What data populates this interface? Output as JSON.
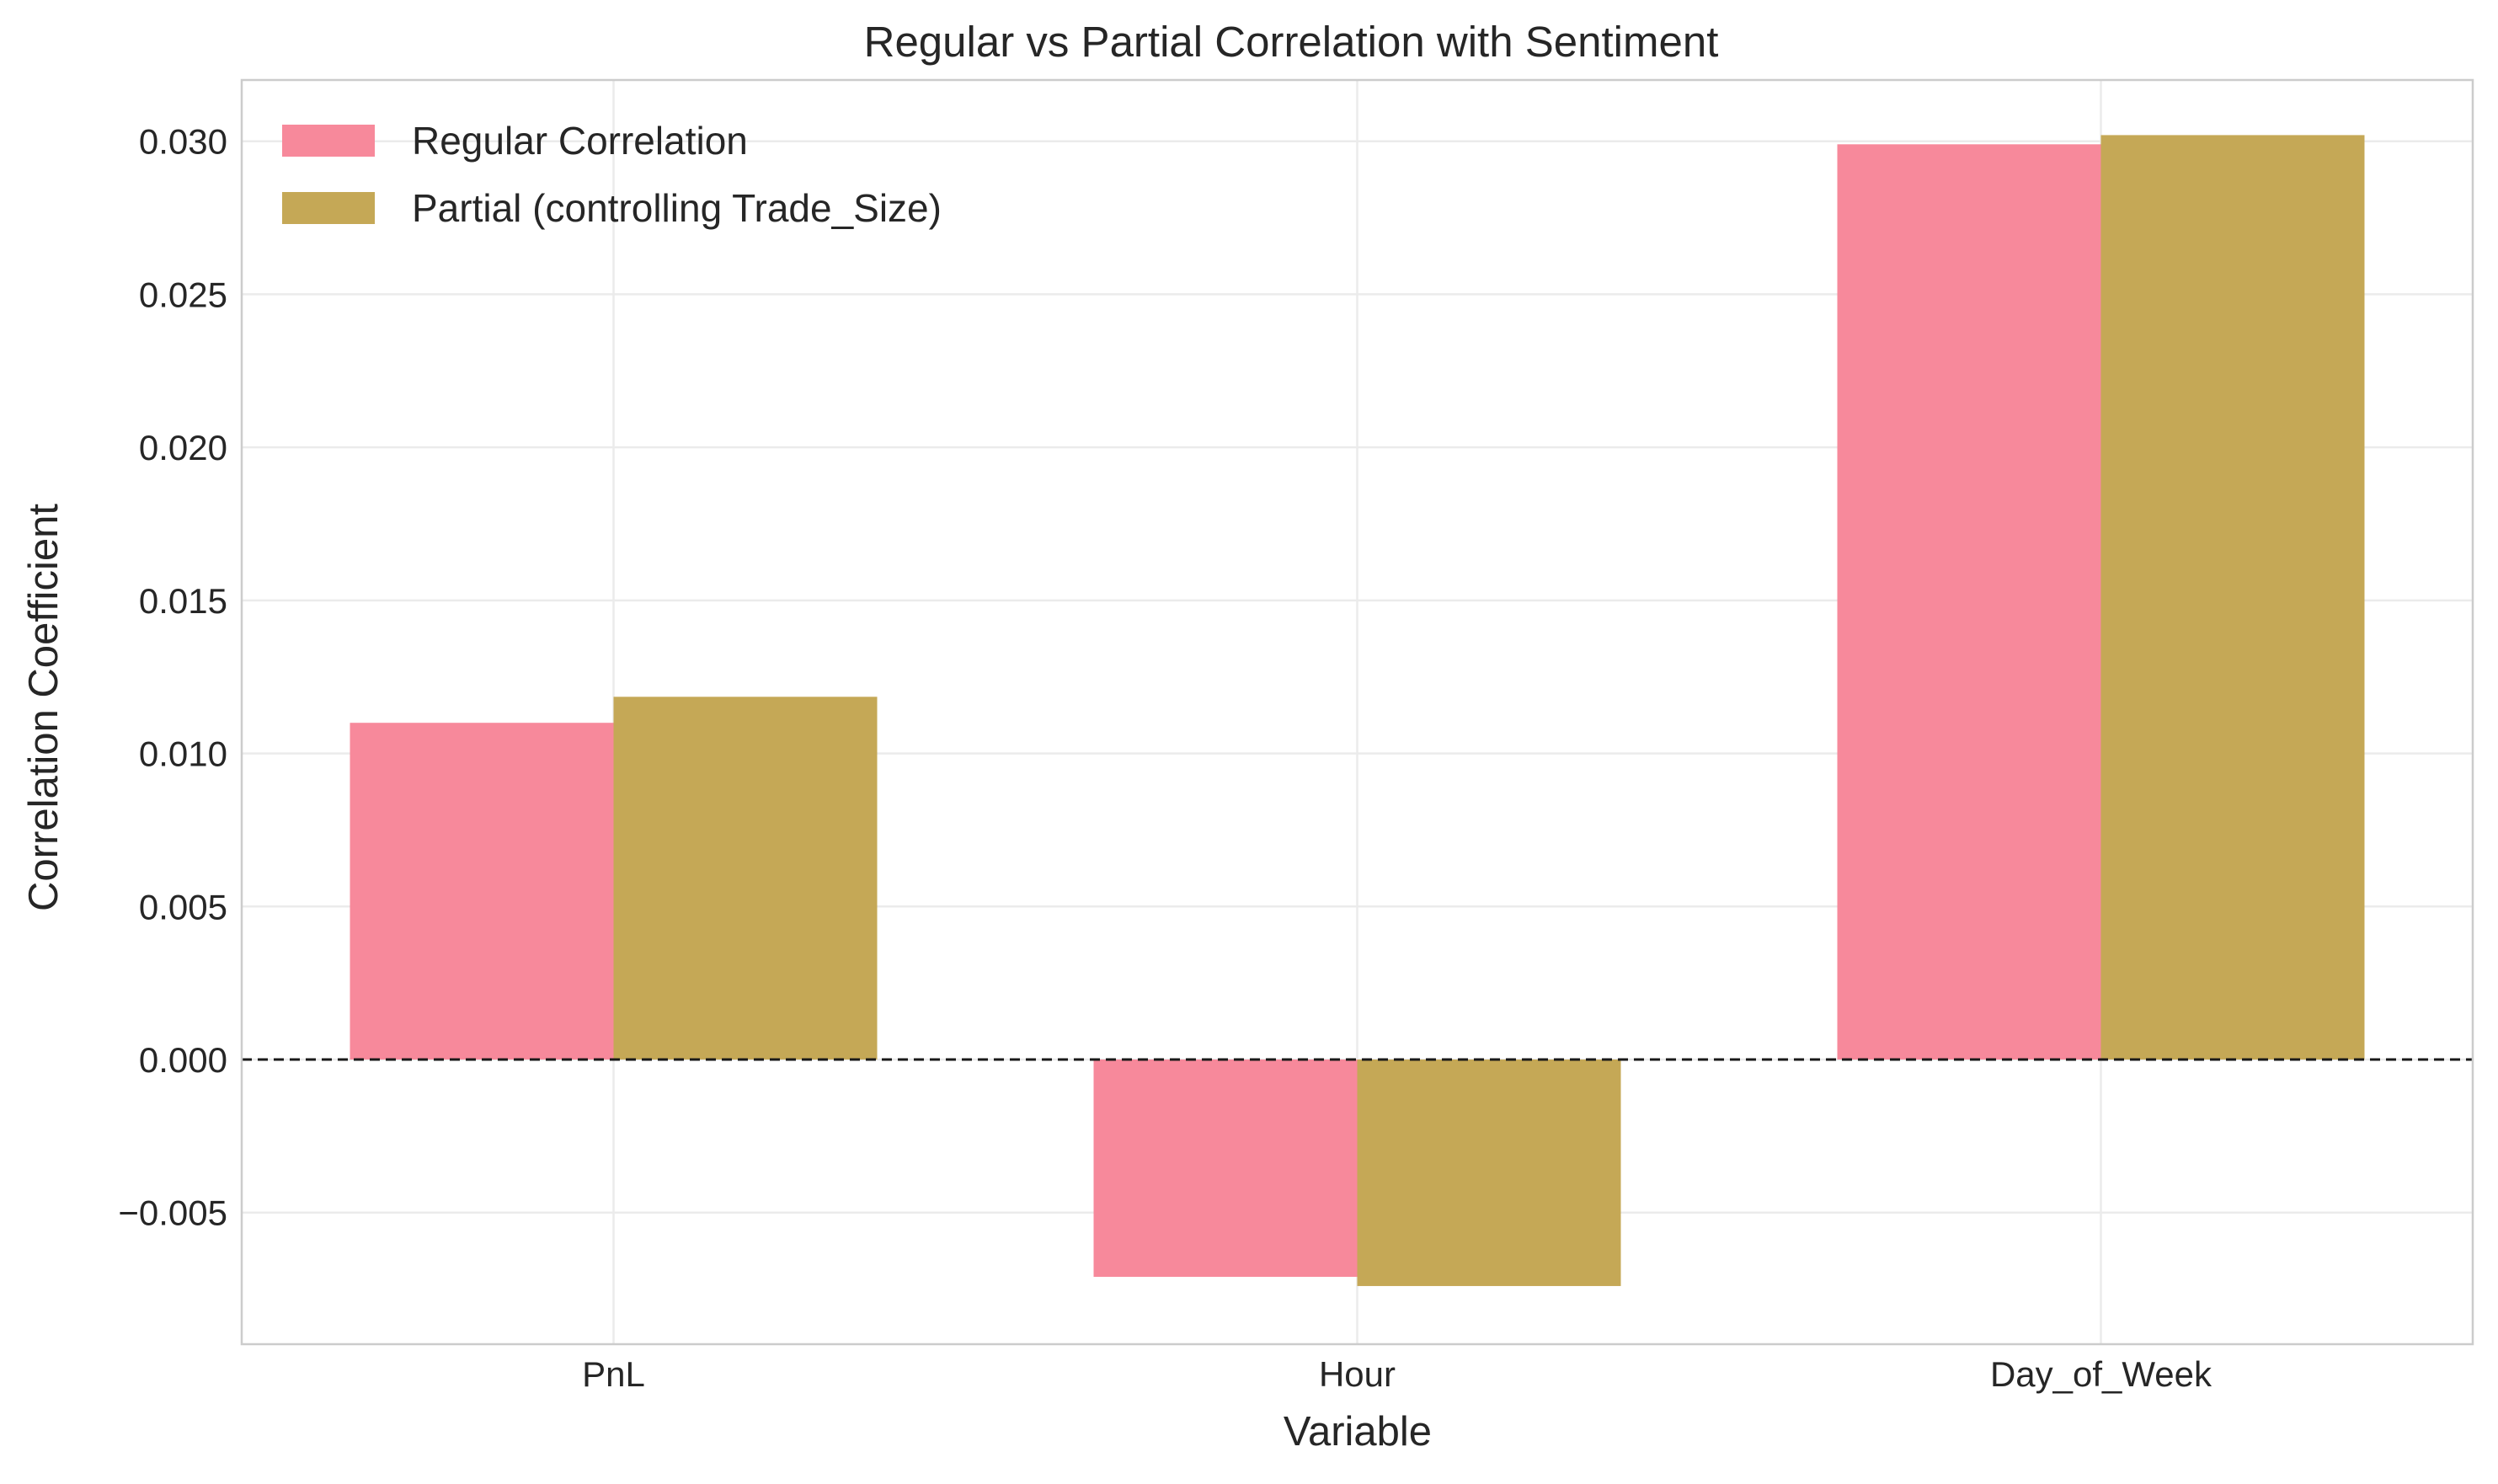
{
  "chart_data": {
    "type": "bar",
    "title": "Regular vs Partial Correlation with Sentiment",
    "xlabel": "Variable",
    "ylabel": "Correlation Coefficient",
    "categories": [
      "PnL",
      "Hour",
      "Day_of_Week"
    ],
    "series": [
      {
        "name": "Regular Correlation",
        "values": [
          0.011,
          -0.0071,
          0.0299
        ],
        "color": "#f7899b"
      },
      {
        "name": "Partial (controlling Trade_Size)",
        "values": [
          0.01185,
          -0.0074,
          0.0302
        ],
        "color": "#c5a856"
      }
    ],
    "ylim": [
      -0.0093,
      0.032
    ],
    "yticks": [
      -0.005,
      0.0,
      0.005,
      0.01,
      0.015,
      0.02,
      0.025,
      0.03
    ],
    "ytick_labels": [
      "−0.005",
      "0.000",
      "0.005",
      "0.010",
      "0.015",
      "0.020",
      "0.025",
      "0.030"
    ],
    "reference_line": {
      "y": 0,
      "style": "dashed",
      "color": "#1a1a1a"
    },
    "grid": true,
    "legend_position": "top-left"
  }
}
